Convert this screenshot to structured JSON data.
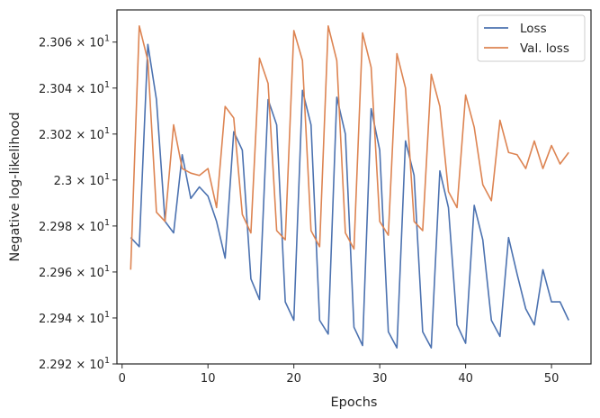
{
  "chart_data": {
    "type": "line",
    "xlabel": "Epochs",
    "ylabel": "Negative log-likelihood",
    "xlim": [
      -0.6,
      54.6
    ],
    "ylim": [
      22.92,
      23.074
    ],
    "x_ticks": [
      0,
      10,
      20,
      30,
      40,
      50
    ],
    "x_tick_labels": [
      "0",
      "10",
      "20",
      "30",
      "40",
      "50"
    ],
    "y_ticks": [
      22.92,
      22.94,
      22.96,
      22.98,
      23.0,
      23.02,
      23.04,
      23.06
    ],
    "y_tick_labels": [
      {
        "mantissa": "2.292",
        "exp": "1"
      },
      {
        "mantissa": "2.294",
        "exp": "1"
      },
      {
        "mantissa": "2.296",
        "exp": "1"
      },
      {
        "mantissa": "2.298",
        "exp": "1"
      },
      {
        "mantissa": "2.3",
        "exp": "1"
      },
      {
        "mantissa": "2.302",
        "exp": "1"
      },
      {
        "mantissa": "2.304",
        "exp": "1"
      },
      {
        "mantissa": "2.306",
        "exp": "1"
      }
    ],
    "grid": false,
    "legend_position": "top-right",
    "x": [
      1,
      2,
      3,
      4,
      5,
      6,
      7,
      8,
      9,
      10,
      11,
      12,
      13,
      14,
      15,
      16,
      17,
      18,
      19,
      20,
      21,
      22,
      23,
      24,
      25,
      26,
      27,
      28,
      29,
      30,
      31,
      32,
      33,
      34,
      35,
      36,
      37,
      38,
      39,
      40,
      41,
      42,
      43,
      44,
      45,
      46,
      47,
      48,
      49,
      50,
      51,
      52
    ],
    "series": [
      {
        "name": "Loss",
        "color": "#4c72b0",
        "values": [
          22.975,
          22.971,
          23.059,
          23.035,
          22.982,
          22.977,
          23.011,
          22.992,
          22.997,
          22.993,
          22.982,
          22.966,
          23.021,
          23.013,
          22.957,
          22.948,
          23.035,
          23.024,
          22.947,
          22.939,
          23.039,
          23.024,
          22.939,
          22.933,
          23.036,
          23.02,
          22.936,
          22.928,
          23.031,
          23.013,
          22.934,
          22.927,
          23.017,
          23.002,
          22.934,
          22.927,
          23.004,
          22.988,
          22.937,
          22.929,
          22.989,
          22.974,
          22.939,
          22.932,
          22.975,
          22.959,
          22.944,
          22.937,
          22.961,
          22.947,
          22.947,
          22.939
        ]
      },
      {
        "name": "Val. loss",
        "color": "#dd8452",
        "values": [
          22.961,
          23.067,
          23.052,
          22.986,
          22.982,
          23.024,
          23.005,
          23.003,
          23.002,
          23.005,
          22.988,
          23.032,
          23.027,
          22.985,
          22.977,
          23.053,
          23.042,
          22.978,
          22.974,
          23.065,
          23.052,
          22.978,
          22.971,
          23.067,
          23.052,
          22.977,
          22.97,
          23.064,
          23.049,
          22.982,
          22.976,
          23.055,
          23.04,
          22.982,
          22.978,
          23.046,
          23.032,
          22.995,
          22.988,
          23.037,
          23.023,
          22.998,
          22.991,
          23.026,
          23.012,
          23.011,
          23.005,
          23.017,
          23.005,
          23.015,
          23.007,
          23.012
        ]
      }
    ]
  }
}
